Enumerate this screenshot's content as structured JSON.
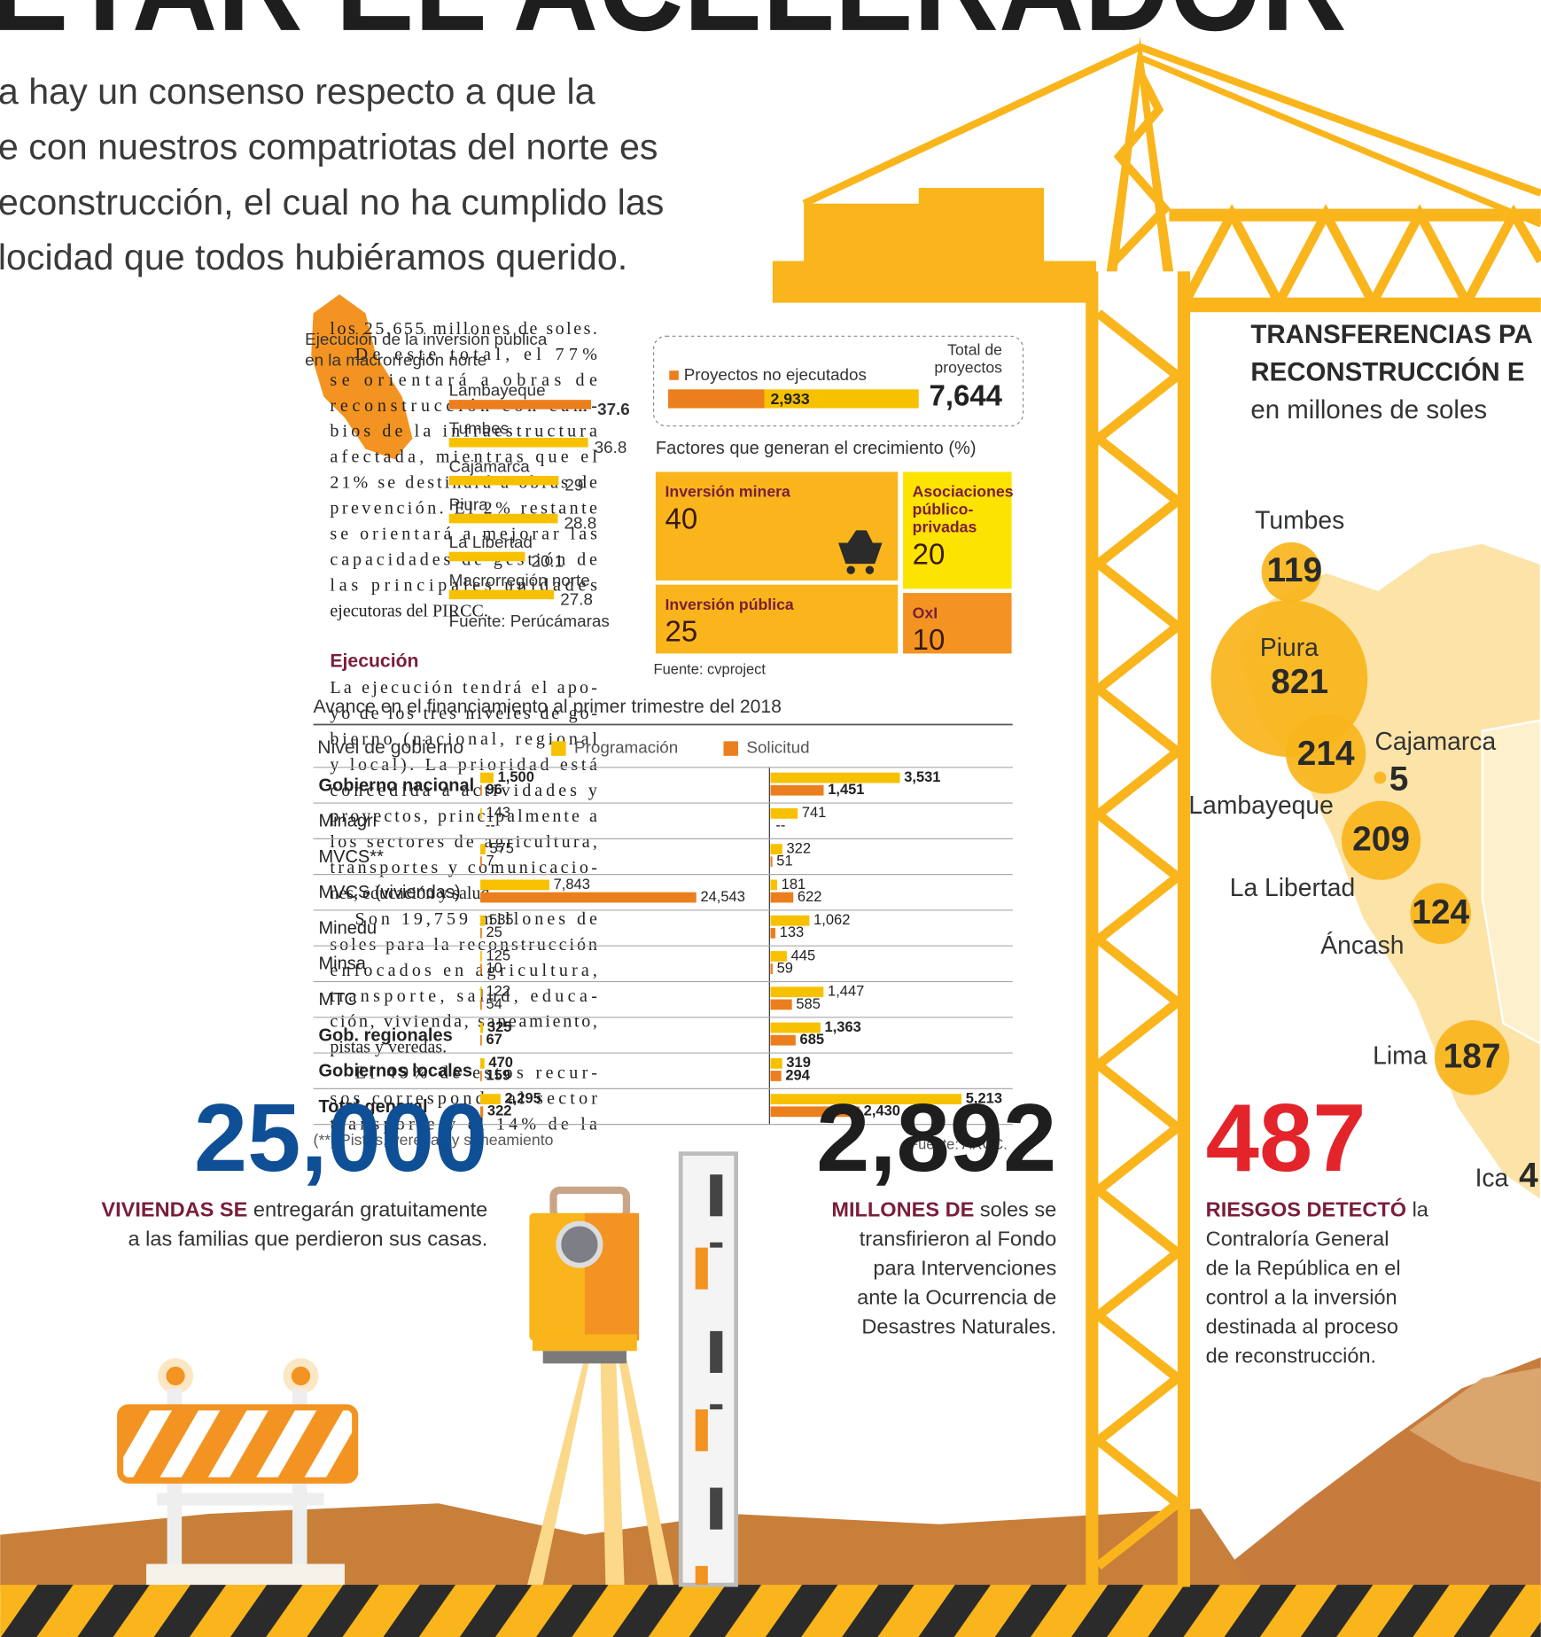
{
  "header": {
    "title": "ETAR EL ACELERADOR",
    "intro": [
      "a hay un consenso respecto a que la",
      "e con nuestros compatriotas del norte es",
      "econstrucción, el cual no ha cumplido las",
      "locidad que todos hubiéramos querido."
    ]
  },
  "article": {
    "lines_1": [
      "los 25,655 millones de soles.",
      "De este total, el 77%",
      "se orientará a obras de",
      "reconstrucción con cam-",
      "bios de la infraestructura",
      "afectada, mientras que el",
      "21% se destinará a obras de",
      "prevención. El 2% restante",
      "se orientará a mejorar las",
      "capacidades de gestión de",
      "las principales unidades",
      "ejecutoras del PIRCC."
    ],
    "subhead": "Ejecución",
    "lines_2": [
      "La ejecución tendrá el apo-",
      "yo de los tres niveles de go-",
      "bierno (nacional, regional",
      "y local). La prioridad está",
      "concedida a actividades y",
      "proyectos, principalmente a",
      "los sectores de agricultura,",
      "transportes y comunicacio-",
      "nes, educación y salud.",
      "Son 19,759 millones de",
      "soles para la reconstrucción",
      "enfocados en agricultura,",
      "transporte, salud, educa-",
      "ción, vivienda, saneamiento,",
      "pistas y veredas.",
      "El 49% de estos recur-",
      "sos corresponde al sector",
      "transporte y el 14% de la"
    ]
  },
  "execution_chart": {
    "type": "bar",
    "title": [
      "Ejecución de la inversión pública",
      "en la macrorregión norte"
    ],
    "categories": [
      "Lambayeque",
      "Tumbes",
      "Cajamarca",
      "Piura",
      "La Libertad",
      "Macrorregión norte"
    ],
    "values": [
      37.6,
      36.8,
      29,
      28.8,
      20.1,
      27.8
    ],
    "colors": [
      "#ec7f1d",
      "#f7c100",
      "#f7c100",
      "#f7c100",
      "#f7c100",
      "#f7c100"
    ],
    "source": "Fuente: Perúcámaras"
  },
  "projects": {
    "type": "bar",
    "categories": [
      "Proyectos no ejecutados",
      [
        "Total de",
        "proyectos"
      ]
    ],
    "values": [
      2933,
      7644
    ],
    "value_labels": [
      "2,933",
      "7,644"
    ],
    "colors": [
      "#ec7f1d",
      "#f7c100"
    ]
  },
  "growth": {
    "type": "treemap",
    "title": "Factores que generan el crecimiento (%)",
    "categories": [
      [
        "Inversión minera"
      ],
      [
        "Asociaciones",
        "público-",
        "privadas"
      ],
      [
        "Inversión pública"
      ],
      [
        "OxI"
      ]
    ],
    "values": [
      40,
      20,
      25,
      10
    ],
    "colors": [
      "#f9b51b",
      "#fde300",
      "#f9b51b",
      "#f39321"
    ],
    "source": "Fuente: cvproject"
  },
  "funding": {
    "type": "bar",
    "title": "Avance en el financiamiento al primer trimestre del 2018",
    "header": "Nivel de gobierno",
    "categories": [
      "Gobierno nacional",
      "Minagri",
      "MVCS**",
      "MVCS (viviendas)",
      "Minedu",
      "Minsa",
      "MTC",
      "Gob. regionales",
      "Gobiernos locales",
      "Total general"
    ],
    "bold": [
      true,
      false,
      false,
      false,
      false,
      false,
      false,
      true,
      true,
      true
    ],
    "series": [
      {
        "name": "Programación",
        "color": "#f7c100",
        "values": [
          1500,
          143,
          575,
          7843,
          535,
          125,
          122,
          325,
          470,
          2295
        ],
        "value_labels": [
          "1,500",
          "143",
          "575",
          "7,843",
          "535",
          "125",
          "122",
          "325",
          "470",
          "2,295"
        ],
        "values_right": [
          3531,
          741,
          322,
          181,
          1062,
          445,
          1447,
          1363,
          319,
          5213
        ],
        "value_labels_right": [
          "3,531",
          "741",
          "322",
          "181",
          "1,062",
          "445",
          "1,447",
          "1,363",
          "319",
          "5,213"
        ]
      },
      {
        "name": "Solicitud",
        "color": "#ec7f1d",
        "values": [
          96,
          null,
          7,
          24543,
          25,
          10,
          54,
          67,
          159,
          322
        ],
        "value_labels": [
          "96",
          "--",
          "7",
          "24,543",
          "25",
          "10",
          "54",
          "67",
          "159",
          "322"
        ],
        "values_right": [
          1451,
          null,
          51,
          622,
          133,
          59,
          585,
          685,
          294,
          2430
        ],
        "value_labels_right": [
          "1,451",
          "--",
          "51",
          "622",
          "133",
          "59",
          "585",
          "685",
          "294",
          "2,430"
        ]
      }
    ],
    "note": "(**) Pistas, veredas y saneamiento",
    "source": "Fuente: ARCC."
  },
  "transfers": {
    "type": "bubble",
    "title": [
      "TRANSFERENCIAS PA",
      "RECONSTRUCCIÓN E"
    ],
    "subtitle": "en millones de soles",
    "categories": [
      "Tumbes",
      "Piura",
      "Lambayeque",
      "Cajamarca",
      "La Libertad",
      "Áncash",
      "Lima"
    ],
    "values": [
      119,
      821,
      214,
      5,
      209,
      124,
      187
    ],
    "color": "#f9b51b",
    "cutoff": {
      "category": "Ica",
      "label": "4"
    }
  },
  "stats": [
    {
      "number": "25,000",
      "lead": "VIVIENDAS SE",
      "lines": [
        "entregarán gratuitamente",
        "a las familias que perdieron sus casas."
      ],
      "color": "#0f4f96"
    },
    {
      "number": "2,892",
      "lead": "MILLONES DE",
      "lines": [
        "soles se",
        "transfirieron al Fondo",
        "para Intervenciones",
        "ante la Ocurrencia de",
        "Desastres Naturales."
      ],
      "color": "#1e1e1e"
    },
    {
      "number": "487",
      "lead": "RIESGOS DETECTÓ",
      "lines": [
        "la",
        "Contraloría General",
        "de la República en el",
        "control a la inversión",
        "destinada al proceso",
        "de reconstrucción."
      ],
      "color": "#e3242b"
    }
  ]
}
